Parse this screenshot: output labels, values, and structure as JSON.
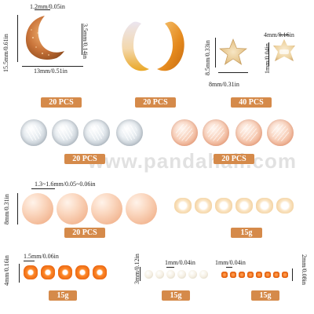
{
  "watermark": "www.pandahall.com",
  "moon_dims": {
    "width_left": "1.2mm/0.05in",
    "height": "15.5mm/0.61in",
    "thickness": "3.5mm/0.14in",
    "width": "13mm/0.51in"
  },
  "star_dims": {
    "height": "8.5mm/0.33in",
    "width": "8mm/0.31in",
    "hole": "4mm/0.16in",
    "thickness": "1mm/0.04in"
  },
  "round_dims": {
    "hole": "1.3~1.6mm/0.05~0.06in",
    "diameter": "8mm/0.31in"
  },
  "seed_dims": {
    "left_height": "4mm/0.16in",
    "left_hole": "1.5mm/0.06in",
    "mid_size": "3mm/0.12in",
    "mid_hole": "1mm/0.04in",
    "right_hole": "1mm/0.04in",
    "right_size": "2mm/0.08in"
  },
  "badges": {
    "moon_amber": "20 PCS",
    "moon_gradient": "20 PCS",
    "star": "40 PCS",
    "crackle_clear": "20 PCS",
    "crackle_pink": "20 PCS",
    "peach_round": "20 PCS",
    "cream_seed": "15g",
    "orange_seed": "15g",
    "pearl_seed": "15g",
    "tiny_orange_seed": "15g"
  },
  "colors": {
    "badge_bg": "#d58a4a",
    "moon_amber": "#c9743a",
    "orange_seed": "#e8620e"
  }
}
